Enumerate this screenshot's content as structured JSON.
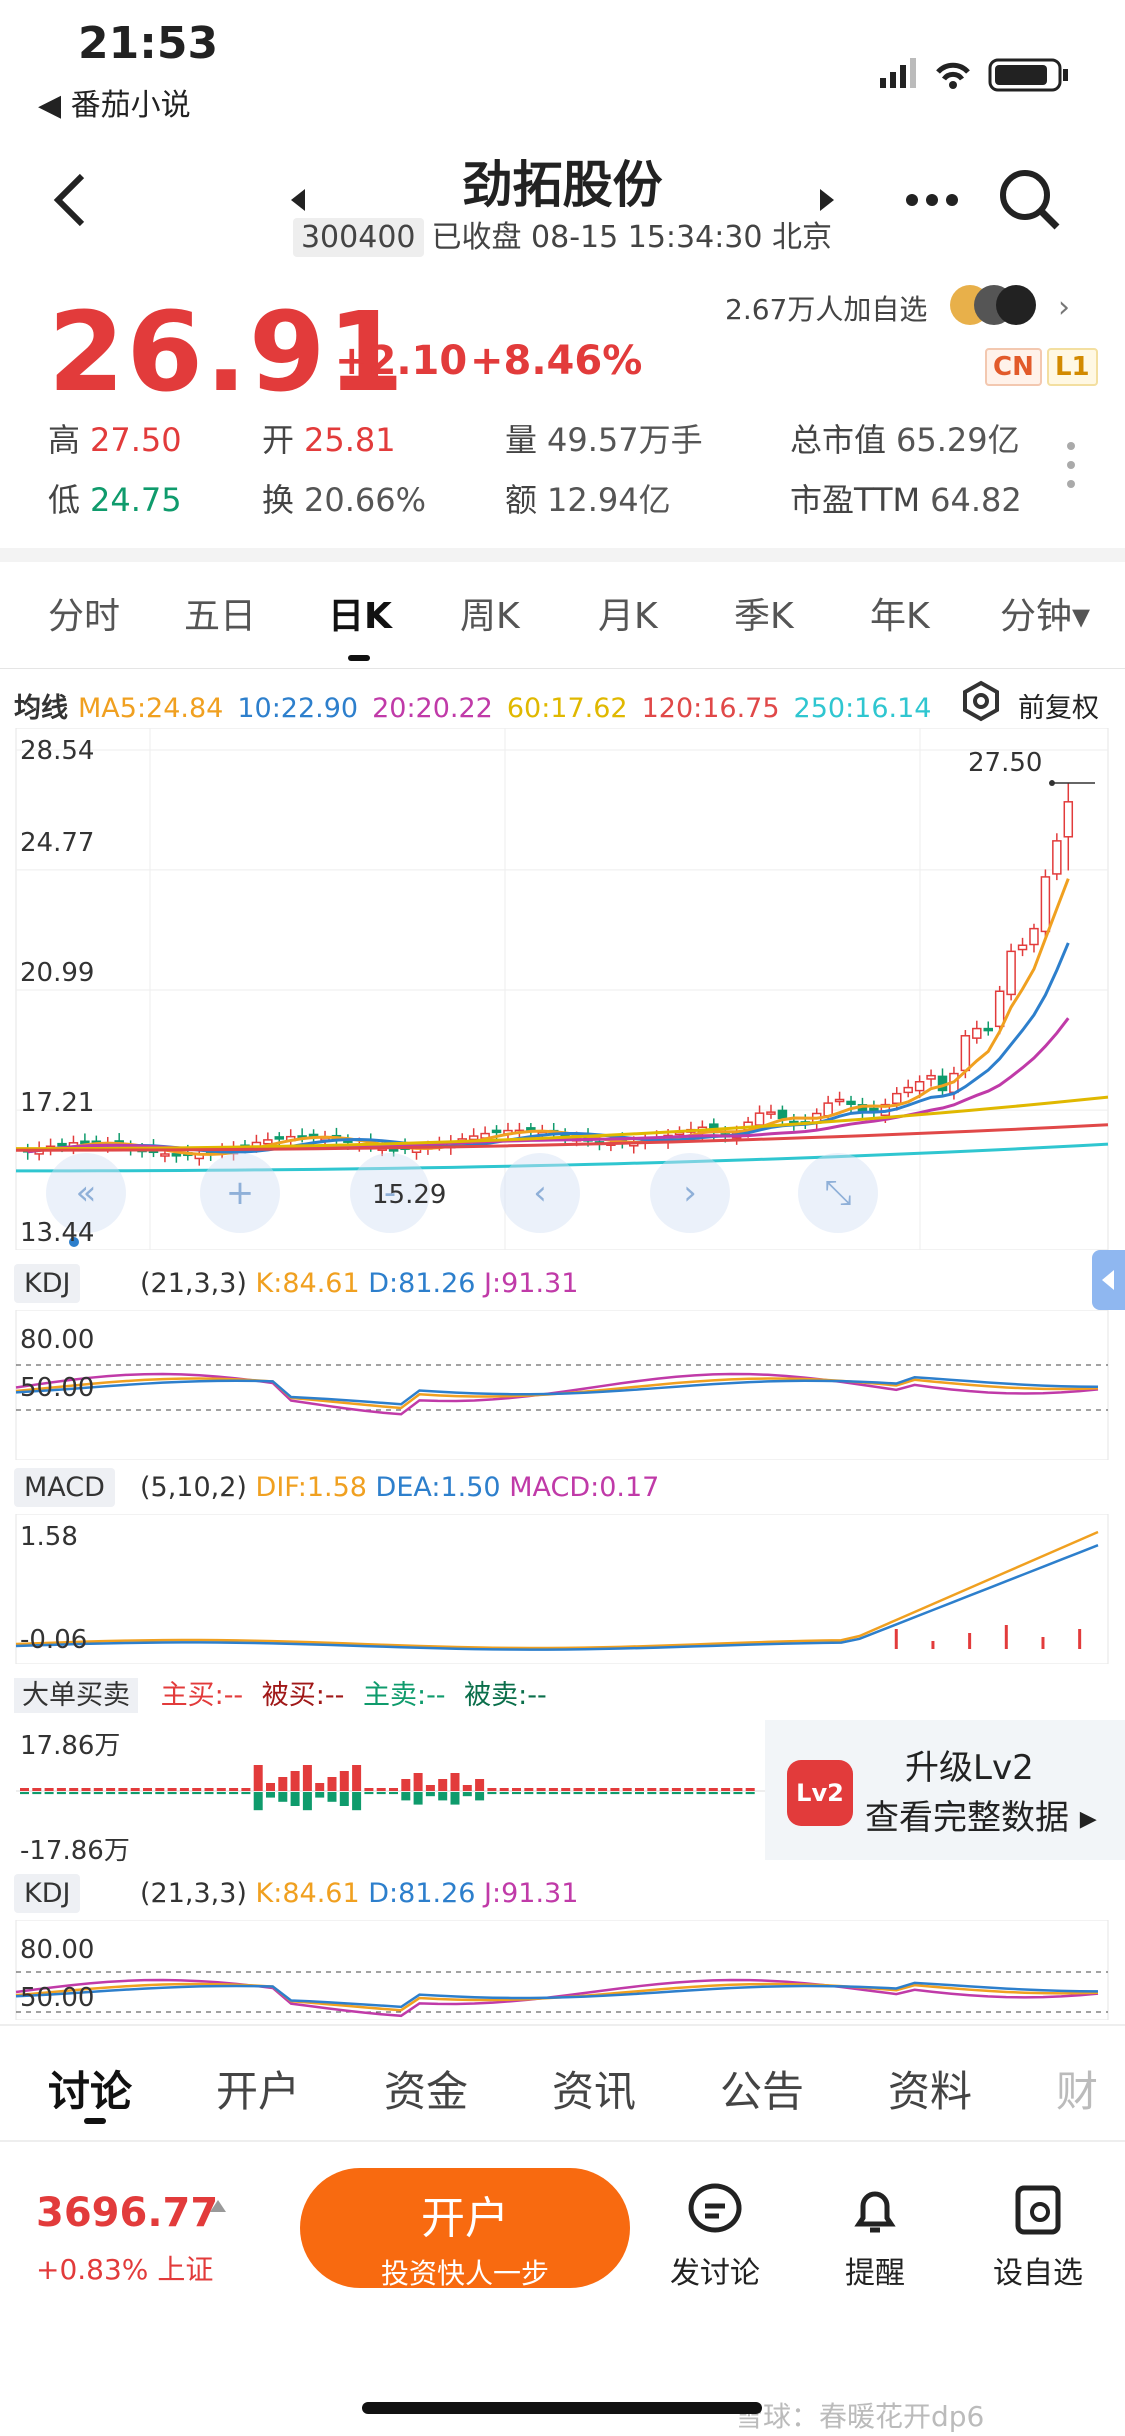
{
  "status": {
    "time": "21:53",
    "back_app": "◀ 番茄小说"
  },
  "header": {
    "title": "劲拓股份",
    "code": "300400",
    "status_text": "已收盘 08-15 15:34:30 北京"
  },
  "quote": {
    "price": "26.91",
    "change": "+2.10",
    "change_pct": "+8.46%",
    "followers": "2.67万人加自选",
    "badge_cn": "CN",
    "badge_l1": "L1",
    "stats": [
      {
        "label": "高",
        "value": "27.50",
        "color": "red"
      },
      {
        "label": "开",
        "value": "25.81",
        "color": "red"
      },
      {
        "label": "量",
        "value": "49.57万手",
        "color": "gray"
      },
      {
        "label": "总市值",
        "value": "65.29亿",
        "color": "gray"
      },
      {
        "label": "低",
        "value": "24.75",
        "color": "green"
      },
      {
        "label": "换",
        "value": "20.66%",
        "color": "gray"
      },
      {
        "label": "额",
        "value": "12.94亿",
        "color": "gray"
      },
      {
        "label": "市盈TTM",
        "value": "64.82",
        "color": "gray"
      }
    ]
  },
  "period_tabs": [
    "分时",
    "五日",
    "日K",
    "周K",
    "月K",
    "季K",
    "年K",
    "分钟▾"
  ],
  "ma_legend": {
    "title": "均线",
    "items": [
      {
        "text": "MA5:24.84",
        "color": "#f0a020"
      },
      {
        "text": "10:22.90",
        "color": "#2d7fcc"
      },
      {
        "text": "20:20.22",
        "color": "#c03aa8"
      },
      {
        "text": "60:17.62",
        "color": "#e0b800"
      },
      {
        "text": "120:16.75",
        "color": "#e04848"
      },
      {
        "text": "250:16.14",
        "color": "#2fc6d0"
      }
    ],
    "adjust": "前复权"
  },
  "price_axis": [
    "28.54",
    "24.77",
    "20.99",
    "17.21",
    "13.44"
  ],
  "price_high_marker": "27.50",
  "price_low_marker": "15.29",
  "kdj": {
    "name": "KDJ",
    "params": "(21,3,3)",
    "k": "K:84.61",
    "d": "D:81.26",
    "j": "J:91.31",
    "axis": [
      "80.00",
      "50.00"
    ]
  },
  "macd": {
    "name": "MACD",
    "params": "(5,10,2)",
    "dif": "DIF:1.58",
    "dea": "DEA:1.50",
    "macd": "MACD:0.17",
    "axis": [
      "1.58",
      "-0.06"
    ]
  },
  "bigorder": {
    "name": "大单买卖",
    "zhumai": "主买:--",
    "beimai": "被买:--",
    "zhumai2": "主卖:--",
    "beimai2": "被卖:--",
    "axis": [
      "17.86万",
      "-17.86万"
    ]
  },
  "lv2": {
    "icon": "Lv2",
    "line1": "升级Lv2",
    "line2": "查看完整数据 ▸"
  },
  "bottom_tabs": [
    "讨论",
    "开户",
    "资金",
    "资讯",
    "公告",
    "资料",
    "财"
  ],
  "footer": {
    "index_value": "3696.77",
    "index_change": "+0.83%",
    "index_name": "上证",
    "open_title": "开户",
    "open_sub": "投资快人一步",
    "actions": [
      "发讨论",
      "提醒",
      "设自选"
    ],
    "watermark": "雪球：春暖花开dp6"
  },
  "chart_data": {
    "type": "candlestick",
    "ylim": [
      13.44,
      28.54
    ],
    "ticks": [
      "28.54",
      "24.77",
      "20.99",
      "17.21",
      "13.44"
    ],
    "last": {
      "open": 25.81,
      "high": 27.5,
      "low": 24.75,
      "close": 26.91
    },
    "ma": {
      "MA5": 24.84,
      "MA10": 22.9,
      "MA20": 20.22,
      "MA60": 17.62,
      "MA120": 16.75,
      "MA250": 16.14
    }
  }
}
